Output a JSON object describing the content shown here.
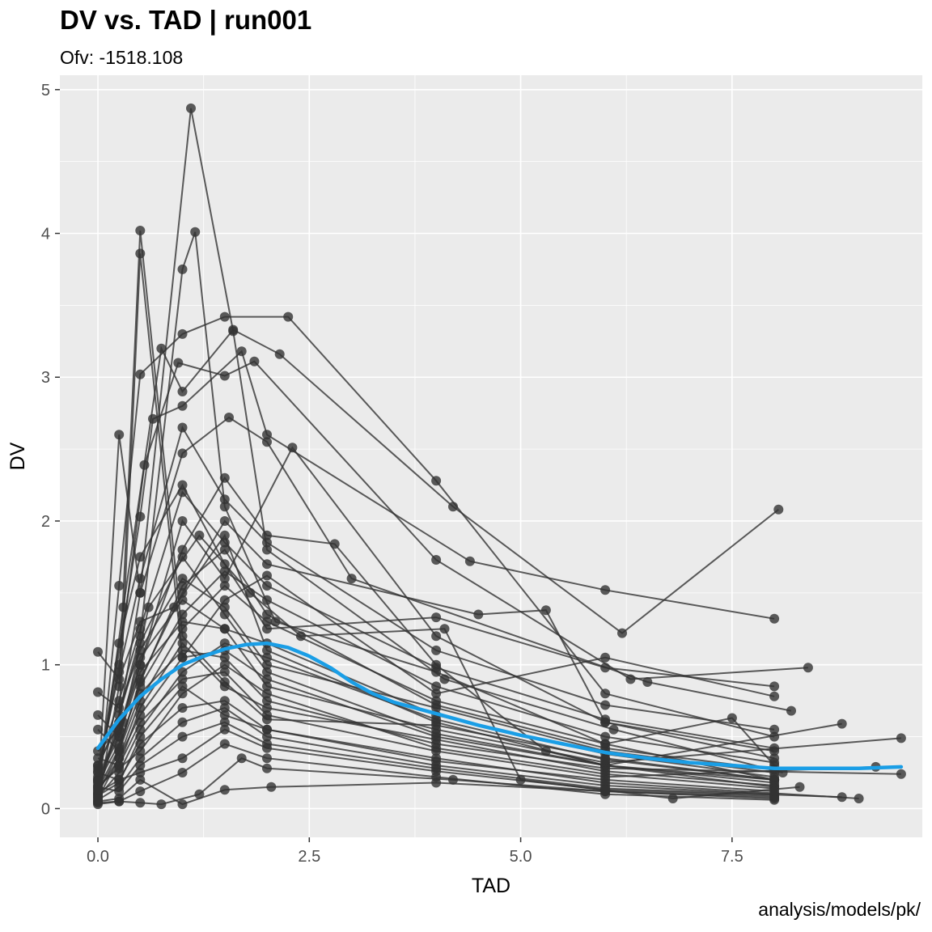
{
  "chart_data": {
    "type": "scatter",
    "title": "DV vs. TAD | run001",
    "subtitle": "Ofv: -1518.108",
    "caption": "analysis/models/pk/",
    "xlabel": "TAD",
    "ylabel": "DV",
    "xlim": [
      -0.45,
      9.75
    ],
    "ylim": [
      -0.2,
      5.1
    ],
    "x_ticks": [
      0.0,
      2.5,
      5.0,
      7.5
    ],
    "x_tick_labels": [
      "0.0",
      "2.5",
      "5.0",
      "7.5"
    ],
    "y_ticks": [
      0,
      1,
      2,
      3,
      4,
      5
    ],
    "y_tick_labels": [
      "0",
      "1",
      "2",
      "3",
      "4",
      "5"
    ],
    "grid": true,
    "legend": "none",
    "colors": {
      "panel": "#ebebeb",
      "grid": "#ffffff",
      "points": "#333333",
      "lines": "#333333",
      "smooth": "#1a9ee6"
    },
    "series": [
      {
        "type": "individual-profiles",
        "x": [
          0.0,
          0.25,
          0.5,
          1.0,
          1.5,
          2.0,
          4.0,
          6.0,
          8.0
        ],
        "values": [
          0.05,
          0.85,
          4.02,
          1.2,
          0.88,
          0.62,
          0.58,
          0.35,
          0.2
        ]
      },
      {
        "type": "individual-profiles",
        "x": [
          0.0,
          0.25,
          0.5,
          1.0,
          1.5,
          2.0,
          4.0,
          6.0,
          8.0
        ],
        "values": [
          0.1,
          0.6,
          3.86,
          1.05,
          1.1,
          0.9,
          0.5,
          0.3,
          0.15
        ]
      },
      {
        "type": "individual-profiles",
        "x": [
          0.0,
          0.25,
          0.5,
          1.1,
          1.6,
          2.0,
          4.1,
          6.1,
          8.1
        ],
        "values": [
          0.08,
          2.6,
          1.5,
          4.87,
          3.32,
          1.8,
          0.9,
          0.55,
          0.25
        ]
      },
      {
        "type": "individual-profiles",
        "x": [
          0.0,
          0.5,
          1.0,
          1.15,
          1.5,
          2.1,
          4.0,
          6.0,
          8.0
        ],
        "values": [
          0.1,
          1.2,
          3.75,
          4.01,
          2.1,
          1.3,
          0.95,
          0.45,
          0.2
        ]
      },
      {
        "type": "individual-profiles",
        "x": [
          0.0,
          0.25,
          0.5,
          1.0,
          1.5,
          2.25,
          4.0,
          6.0,
          8.0
        ],
        "values": [
          0.05,
          1.55,
          3.02,
          3.3,
          3.42,
          3.42,
          2.28,
          0.8,
          0.5
        ]
      },
      {
        "type": "individual-profiles",
        "x": [
          0.0,
          0.3,
          0.75,
          1.0,
          1.6,
          2.15,
          4.2,
          6.2,
          8.05
        ],
        "values": [
          0.1,
          1.4,
          3.2,
          2.9,
          3.33,
          3.16,
          2.1,
          1.22,
          2.08
        ]
      },
      {
        "type": "individual-profiles",
        "x": [
          0.0,
          0.5,
          0.65,
          1.0,
          1.7,
          2.0,
          4.4,
          6.0,
          8.0
        ],
        "values": [
          0.15,
          2.03,
          2.71,
          2.8,
          3.18,
          2.6,
          1.72,
          1.52,
          1.32
        ]
      },
      {
        "type": "individual-profiles",
        "x": [
          0.0,
          0.25,
          0.55,
          0.95,
          1.5,
          1.85,
          4.0,
          6.3,
          8.4
        ],
        "values": [
          0.2,
          1.0,
          2.39,
          3.1,
          3.01,
          3.11,
          1.73,
          0.9,
          0.98
        ]
      },
      {
        "type": "individual-profiles",
        "x": [
          0.0,
          0.25,
          0.5,
          1.0,
          1.55,
          2.0,
          3.0,
          6.5,
          8.2
        ],
        "values": [
          0.3,
          0.6,
          1.5,
          2.47,
          2.72,
          2.55,
          1.6,
          0.88,
          0.68
        ]
      },
      {
        "type": "individual-profiles",
        "x": [
          0.0,
          0.25,
          0.5,
          1.0,
          1.5,
          2.3,
          4.0,
          6.0,
          8.0
        ],
        "values": [
          0.4,
          0.55,
          1.0,
          2.0,
          1.6,
          2.51,
          1.2,
          0.6,
          0.4
        ]
      },
      {
        "type": "individual-profiles",
        "x": [
          0.0,
          0.25,
          0.5,
          0.9,
          1.5,
          2.0,
          4.0,
          6.0,
          8.8
        ],
        "values": [
          1.09,
          0.9,
          1.3,
          1.4,
          1.9,
          1.1,
          0.6,
          0.3,
          0.59
        ]
      },
      {
        "type": "individual-profiles",
        "x": [
          0.0,
          0.25,
          0.5,
          1.0,
          1.5,
          2.0,
          4.0,
          6.0,
          8.0
        ],
        "values": [
          0.81,
          0.7,
          1.1,
          1.6,
          1.4,
          1.0,
          0.7,
          0.4,
          0.25
        ]
      },
      {
        "type": "individual-profiles",
        "x": [
          0.0,
          0.25,
          0.5,
          1.0,
          1.5,
          2.0,
          4.0,
          6.0,
          9.5
        ],
        "values": [
          0.65,
          0.5,
          0.95,
          1.3,
          1.25,
          0.85,
          0.55,
          0.32,
          0.49
        ]
      },
      {
        "type": "individual-profiles",
        "x": [
          0.0,
          0.25,
          0.5,
          1.0,
          1.5,
          2.0,
          4.0,
          6.0,
          9.5
        ],
        "values": [
          0.55,
          0.4,
          0.8,
          1.1,
          1.05,
          0.75,
          0.45,
          0.28,
          0.24
        ]
      },
      {
        "type": "individual-profiles",
        "x": [
          0.0,
          0.25,
          0.5,
          1.0,
          1.5,
          2.0,
          4.0,
          6.0,
          9.2
        ],
        "values": [
          0.35,
          0.3,
          0.6,
          0.9,
          0.95,
          0.65,
          0.4,
          0.22,
          0.29
        ]
      },
      {
        "type": "individual-profiles",
        "x": [
          0.0,
          0.25,
          0.5,
          1.0,
          1.5,
          2.0,
          4.0,
          6.0,
          9.0
        ],
        "values": [
          0.25,
          0.2,
          0.45,
          0.7,
          0.75,
          0.55,
          0.35,
          0.18,
          0.07
        ]
      },
      {
        "type": "individual-profiles",
        "x": [
          0.0,
          0.25,
          0.5,
          1.0,
          1.5,
          2.0,
          4.0,
          6.0,
          8.8
        ],
        "values": [
          0.15,
          0.12,
          0.3,
          0.5,
          0.6,
          0.45,
          0.28,
          0.14,
          0.08
        ]
      },
      {
        "type": "individual-profiles",
        "x": [
          0.0,
          0.25,
          0.5,
          1.0,
          1.5,
          2.0,
          4.0,
          6.0,
          8.0
        ],
        "values": [
          0.04,
          0.05,
          0.12,
          0.25,
          0.45,
          0.35,
          0.22,
          0.1,
          0.06
        ]
      },
      {
        "type": "individual-profiles",
        "x": [
          0.0,
          0.25,
          0.5,
          0.75,
          1.2,
          1.7,
          2.0,
          4.2,
          6.0,
          8.0
        ],
        "values": [
          0.03,
          0.05,
          0.04,
          0.03,
          0.1,
          0.35,
          0.28,
          0.2,
          0.12,
          0.07
        ]
      },
      {
        "type": "individual-profiles",
        "x": [
          0.0,
          0.25,
          0.5,
          1.0,
          1.5,
          2.05,
          4.0,
          6.0,
          8.0
        ],
        "values": [
          0.05,
          0.07,
          0.2,
          0.03,
          0.13,
          0.15,
          0.18,
          0.12,
          0.08
        ]
      },
      {
        "type": "individual-profiles",
        "x": [
          0.0,
          0.3,
          0.6,
          1.2,
          1.8,
          2.4,
          4.1,
          5.0,
          6.8,
          8.3
        ],
        "values": [
          0.2,
          0.6,
          1.4,
          1.9,
          1.5,
          1.2,
          1.25,
          0.2,
          0.07,
          0.15
        ]
      },
      {
        "type": "individual-profiles",
        "x": [
          0.0,
          0.25,
          0.5,
          1.0,
          1.5,
          2.0,
          2.8,
          4.0,
          5.3,
          6.0,
          8.0
        ],
        "values": [
          0.2,
          0.5,
          1.0,
          1.8,
          2.3,
          1.9,
          1.84,
          1.0,
          0.4,
          0.3,
          0.2
        ]
      },
      {
        "type": "individual-profiles",
        "x": [
          0.0,
          0.25,
          0.5,
          1.0,
          1.5,
          2.0,
          4.5,
          5.3,
          6.0,
          8.0
        ],
        "values": [
          0.1,
          0.4,
          0.9,
          1.5,
          2.0,
          1.7,
          1.35,
          1.38,
          0.6,
          0.35
        ]
      },
      {
        "type": "individual-profiles",
        "x": [
          0.0,
          0.25,
          0.5,
          1.0,
          1.5,
          2.0,
          4.0,
          6.0,
          7.5,
          8.0
        ],
        "values": [
          0.12,
          0.35,
          0.75,
          1.25,
          1.55,
          1.3,
          0.75,
          0.45,
          0.63,
          0.3
        ]
      },
      {
        "type": "individual-profiles",
        "x": [
          0.0,
          0.25,
          0.5,
          1.0,
          1.5,
          2.0,
          4.0,
          6.0,
          8.0
        ],
        "values": [
          0.18,
          0.45,
          0.85,
          1.35,
          1.65,
          1.45,
          0.85,
          0.5,
          0.32
        ]
      },
      {
        "type": "individual-profiles",
        "x": [
          0.0,
          0.25,
          0.5,
          1.0,
          1.5,
          2.0,
          4.0,
          6.0,
          8.0
        ],
        "values": [
          0.22,
          0.55,
          1.05,
          1.45,
          1.25,
          1.15,
          0.65,
          0.38,
          0.22
        ]
      },
      {
        "type": "individual-profiles",
        "x": [
          0.0,
          0.25,
          0.5,
          1.0,
          1.5,
          2.0,
          4.0,
          6.0,
          8.0
        ],
        "values": [
          0.28,
          0.65,
          1.15,
          1.75,
          1.35,
          0.95,
          0.52,
          0.3,
          0.18
        ]
      },
      {
        "type": "individual-profiles",
        "x": [
          0.0,
          0.25,
          0.5,
          1.0,
          1.5,
          2.0,
          4.0,
          6.0,
          8.0
        ],
        "values": [
          0.08,
          0.25,
          0.55,
          0.95,
          1.15,
          1.05,
          0.62,
          0.34,
          0.2
        ]
      },
      {
        "type": "individual-profiles",
        "x": [
          0.0,
          0.25,
          0.5,
          1.0,
          1.5,
          2.0,
          4.0,
          6.0,
          8.0
        ],
        "values": [
          0.14,
          0.3,
          0.7,
          1.15,
          0.85,
          0.7,
          0.48,
          0.26,
          0.16
        ]
      },
      {
        "type": "individual-profiles",
        "x": [
          0.0,
          0.25,
          0.5,
          1.0,
          1.5,
          2.0,
          4.0,
          6.0,
          8.0
        ],
        "values": [
          0.06,
          0.15,
          0.35,
          0.6,
          0.7,
          0.5,
          0.3,
          0.16,
          0.1
        ]
      },
      {
        "type": "individual-profiles",
        "x": [
          0.0,
          0.25,
          0.5,
          1.0,
          1.5,
          2.0,
          4.0,
          6.0,
          8.0
        ],
        "values": [
          0.11,
          0.2,
          0.25,
          0.35,
          0.55,
          0.42,
          0.26,
          0.13,
          0.09
        ]
      },
      {
        "type": "individual-profiles",
        "x": [
          0.0,
          0.25,
          0.5,
          1.0,
          1.5,
          2.0,
          4.0,
          6.0,
          8.0
        ],
        "values": [
          0.16,
          0.28,
          0.4,
          0.8,
          1.0,
          0.8,
          0.42,
          0.24,
          0.14
        ]
      },
      {
        "type": "individual-profiles",
        "x": [
          0.0,
          0.25,
          0.5,
          1.0,
          1.5,
          2.0,
          4.0,
          6.0,
          8.0
        ],
        "values": [
          0.09,
          0.18,
          0.5,
          0.85,
          0.65,
          0.55,
          0.33,
          0.2,
          0.12
        ]
      },
      {
        "type": "individual-profiles",
        "x": [
          0.0,
          0.25,
          0.5,
          1.0,
          1.5,
          2.0,
          4.0,
          6.0,
          8.0
        ],
        "values": [
          0.3,
          0.75,
          1.25,
          2.2,
          1.85,
          1.55,
          0.98,
          0.62,
          0.42
        ]
      },
      {
        "type": "individual-profiles",
        "x": [
          0.0,
          0.25,
          0.5,
          1.0,
          1.5,
          2.0,
          4.0,
          6.0,
          8.0
        ],
        "values": [
          0.26,
          0.95,
          1.6,
          2.65,
          2.15,
          1.85,
          1.1,
          0.72,
          0.55
        ]
      },
      {
        "type": "individual-profiles",
        "x": [
          0.0,
          0.25,
          0.5,
          1.0,
          1.5,
          2.0,
          4.0,
          6.0,
          8.0
        ],
        "values": [
          0.19,
          1.15,
          1.75,
          2.25,
          1.7,
          1.25,
          1.33,
          0.98,
          0.85
        ]
      },
      {
        "type": "individual-profiles",
        "x": [
          0.0,
          0.25,
          0.5,
          1.0,
          1.5,
          2.0,
          4.0,
          6.0,
          8.0
        ],
        "values": [
          0.07,
          0.35,
          0.65,
          1.05,
          1.45,
          1.62,
          0.8,
          1.05,
          0.78
        ]
      },
      {
        "type": "individual-profiles",
        "x": [
          0.0,
          0.25,
          0.5,
          1.0,
          1.5,
          2.0,
          4.0,
          6.0,
          8.0
        ],
        "values": [
          0.13,
          0.42,
          0.88,
          1.55,
          1.8,
          1.35,
          0.72,
          0.42,
          0.27
        ]
      },
      {
        "type": "smooth",
        "name": "",
        "x": [
          0.0,
          0.25,
          0.5,
          0.75,
          1.0,
          1.25,
          1.5,
          1.75,
          2.0,
          2.25,
          2.5,
          2.75,
          3.0,
          3.25,
          3.5,
          4.0,
          4.5,
          5.0,
          5.5,
          6.0,
          6.5,
          7.0,
          7.5,
          8.0,
          8.5,
          9.0,
          9.5
        ],
        "values": [
          0.42,
          0.62,
          0.78,
          0.9,
          1.0,
          1.06,
          1.11,
          1.14,
          1.15,
          1.12,
          1.06,
          0.98,
          0.88,
          0.8,
          0.74,
          0.66,
          0.58,
          0.51,
          0.45,
          0.39,
          0.35,
          0.32,
          0.3,
          0.28,
          0.28,
          0.28,
          0.29
        ]
      }
    ]
  }
}
